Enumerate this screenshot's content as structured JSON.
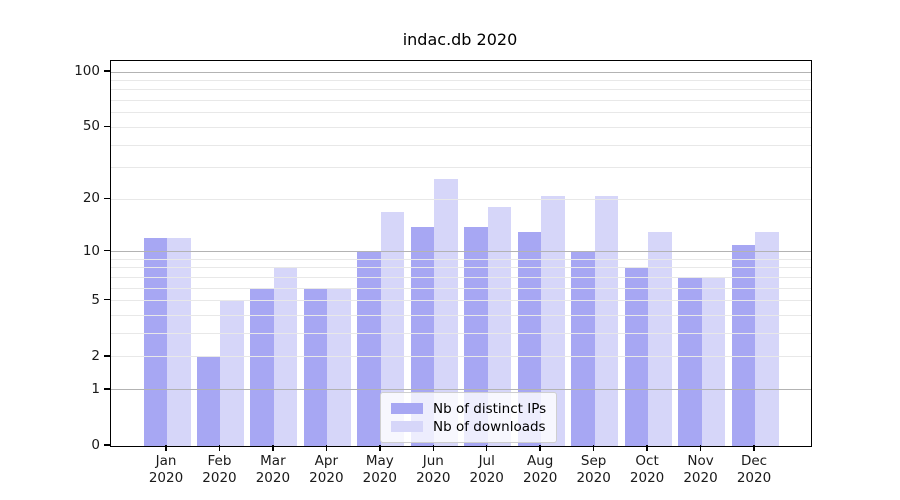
{
  "title": "indac.db 2020",
  "chart_data": {
    "type": "bar",
    "title": "indac.db 2020",
    "categories": [
      "Jan",
      "Feb",
      "Mar",
      "Apr",
      "May",
      "Jun",
      "Jul",
      "Aug",
      "Sep",
      "Oct",
      "Nov",
      "Dec"
    ],
    "category_year": "2020",
    "series": [
      {
        "name": "Nb of distinct IPs",
        "color": "#a7a7f3",
        "bar_color": "rgba(0,0,220,0.345)",
        "values": [
          12,
          2,
          6,
          6,
          10,
          14,
          14,
          13,
          10,
          8,
          7,
          11
        ]
      },
      {
        "name": "Nb of downloads",
        "color": "#d6d6f9",
        "bar_color": "rgba(0,0,215,0.16)",
        "values": [
          12,
          5,
          8,
          6,
          17,
          26,
          18,
          21,
          21,
          13,
          7,
          13
        ]
      }
    ],
    "xlabel": "",
    "ylabel": "",
    "yscale": "log1p",
    "y_axis": {
      "tick_values": [
        0,
        1,
        2,
        5,
        10,
        20,
        50,
        100
      ],
      "major_gridlines": [
        1,
        10,
        100
      ],
      "minor_gridlines": [
        2,
        3,
        4,
        5,
        6,
        7,
        8,
        9,
        20,
        30,
        40,
        50,
        60,
        70,
        80,
        90
      ],
      "ylim": [
        0,
        114.7
      ]
    },
    "legend": {
      "position": "lower center",
      "entries": [
        "Nb of distinct IPs",
        "Nb of downloads"
      ]
    },
    "grid": true
  },
  "colors": {
    "background": "#ffffff",
    "spine": "#000000",
    "major_grid": "#b3b3b3",
    "minor_grid": "#e8e8e8",
    "tick_label": "#1a1a1a",
    "legend_border": "#cfcfcf"
  }
}
